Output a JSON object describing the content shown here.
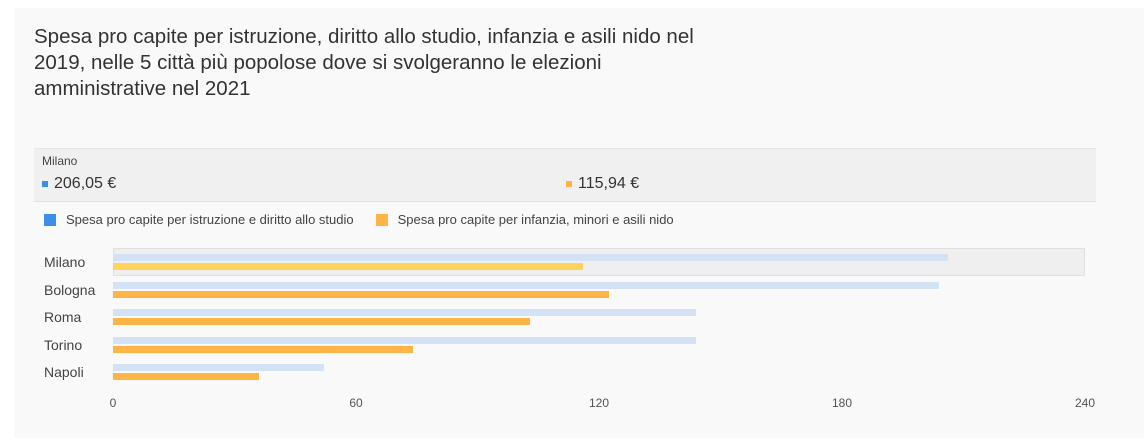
{
  "title": "Spesa pro capite per istruzione, diritto allo studio, infanzia e asili nido nel 2019, nelle 5 città più popolose dove si svolgeranno le elezioni amministrative nel 2021",
  "tooltip": {
    "city": "Milano",
    "value_a": "206,05 €",
    "value_b": "115,94 €"
  },
  "legend": [
    {
      "label": "Spesa pro capite per istruzione e diritto allo studio",
      "color": "#3d8ee9"
    },
    {
      "label": "Spesa pro capite per infanzia, minori e asili nido",
      "color": "#ffb545"
    }
  ],
  "colors": {
    "series_a_bar": "#d3e3f5",
    "series_b_bar": "#ffb545",
    "series_b_highlight": "#ffd25a"
  },
  "chart_data": {
    "type": "bar",
    "orientation": "horizontal",
    "title": "Spesa pro capite per istruzione, diritto allo studio, infanzia e asili nido nel 2019, nelle 5 città più popolose dove si svolgeranno le elezioni amministrative nel 2021",
    "categories": [
      "Milano",
      "Bologna",
      "Roma",
      "Torino",
      "Napoli"
    ],
    "series": [
      {
        "name": "Spesa pro capite per istruzione e diritto allo studio",
        "values": [
          206.05,
          204,
          144,
          144,
          52
        ]
      },
      {
        "name": "Spesa pro capite per infanzia, minori e asili nido",
        "values": [
          115.94,
          122.5,
          103,
          74,
          36
        ]
      }
    ],
    "xlabel": "",
    "ylabel": "",
    "xlim": [
      0,
      240
    ],
    "xticks": [
      0,
      60,
      120,
      180,
      240
    ],
    "grid": false,
    "legend_position": "top",
    "highlighted_category": "Milano"
  }
}
